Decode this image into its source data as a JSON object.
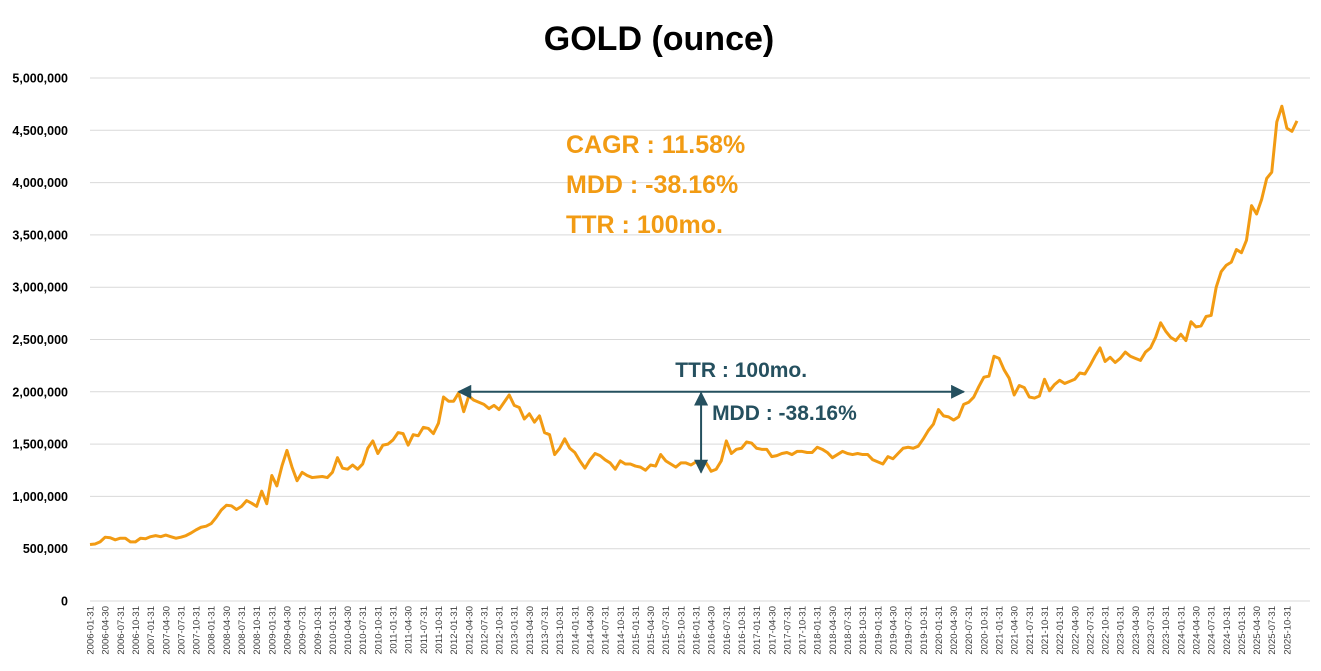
{
  "chart_data": {
    "type": "line",
    "title": "GOLD (ounce)",
    "xlabel": "",
    "ylabel": "",
    "ylim": [
      0,
      5000000
    ],
    "yticks": [
      0,
      500000,
      1000000,
      1500000,
      2000000,
      2500000,
      3000000,
      3500000,
      4000000,
      4500000,
      5000000
    ],
    "ytick_labels": [
      "0",
      "500,000",
      "1,000,000",
      "1,500,000",
      "2,000,000",
      "2,500,000",
      "3,000,000",
      "3,500,000",
      "4,000,000",
      "4,500,000",
      "5,000,000"
    ],
    "grid": true,
    "legend": "none",
    "line_color": "#f29b13",
    "x_tick_step": 3,
    "start_month": "2006-01",
    "series": [
      {
        "values": [
          540000,
          545000,
          565000,
          610000,
          605000,
          585000,
          600000,
          600000,
          565000,
          565000,
          600000,
          595000,
          615000,
          625000,
          615000,
          630000,
          615000,
          600000,
          610000,
          625000,
          650000,
          680000,
          705000,
          715000,
          740000,
          800000,
          870000,
          915000,
          910000,
          875000,
          905000,
          960000,
          935000,
          905000,
          1050000,
          930000,
          1200000,
          1100000,
          1290000,
          1440000,
          1280000,
          1150000,
          1230000,
          1200000,
          1180000,
          1185000,
          1190000,
          1180000,
          1230000,
          1370000,
          1270000,
          1260000,
          1300000,
          1260000,
          1310000,
          1460000,
          1530000,
          1410000,
          1490000,
          1500000,
          1540000,
          1610000,
          1600000,
          1490000,
          1590000,
          1580000,
          1660000,
          1650000,
          1600000,
          1700000,
          1950000,
          1910000,
          1910000,
          1990000,
          1810000,
          1960000,
          1920000,
          1900000,
          1880000,
          1840000,
          1870000,
          1830000,
          1900000,
          1970000,
          1870000,
          1850000,
          1740000,
          1790000,
          1710000,
          1770000,
          1610000,
          1590000,
          1400000,
          1460000,
          1550000,
          1460000,
          1420000,
          1340000,
          1270000,
          1350000,
          1410000,
          1390000,
          1350000,
          1320000,
          1260000,
          1340000,
          1310000,
          1310000,
          1290000,
          1280000,
          1250000,
          1300000,
          1290000,
          1400000,
          1340000,
          1310000,
          1280000,
          1320000,
          1320000,
          1300000,
          1330000,
          1320000,
          1320000,
          1240000,
          1260000,
          1340000,
          1530000,
          1410000,
          1450000,
          1460000,
          1520000,
          1510000,
          1460000,
          1450000,
          1450000,
          1380000,
          1390000,
          1410000,
          1420000,
          1400000,
          1430000,
          1430000,
          1420000,
          1420000,
          1470000,
          1450000,
          1420000,
          1370000,
          1400000,
          1430000,
          1410000,
          1400000,
          1410000,
          1400000,
          1400000,
          1350000,
          1330000,
          1310000,
          1380000,
          1360000,
          1410000,
          1460000,
          1470000,
          1460000,
          1480000,
          1550000,
          1630000,
          1690000,
          1830000,
          1770000,
          1760000,
          1730000,
          1760000,
          1880000,
          1900000,
          1950000,
          2050000,
          2140000,
          2150000,
          2340000,
          2320000,
          2210000,
          2130000,
          1970000,
          2060000,
          2040000,
          1950000,
          1940000,
          1960000,
          2120000,
          2010000,
          2070000,
          2110000,
          2080000,
          2100000,
          2120000,
          2180000,
          2170000,
          2250000,
          2340000,
          2420000,
          2290000,
          2330000,
          2280000,
          2320000,
          2380000,
          2340000,
          2320000,
          2300000,
          2380000,
          2420000,
          2520000,
          2660000,
          2580000,
          2520000,
          2490000,
          2550000,
          2490000,
          2670000,
          2620000,
          2630000,
          2720000,
          2730000,
          3000000,
          3150000,
          3210000,
          3240000,
          3360000,
          3330000,
          3450000,
          3780000,
          3700000,
          3840000,
          4040000,
          4100000,
          4580000,
          4730000,
          4520000,
          4490000,
          4590000
        ]
      }
    ],
    "annotations": {
      "cagr": "CAGR : 11.58%",
      "mdd": "MDD : -38.16%",
      "ttr": "TTR : 100mo.",
      "ttr_arrow_label": "TTR : 100mo.",
      "mdd_arrow_label": "MDD : -38.16%",
      "ttr_from_month_index": 73,
      "ttr_to_month_index": 173,
      "ttr_level": 2000000,
      "mdd_month_index": 121,
      "mdd_top": 1990000,
      "mdd_bottom": 1230000,
      "stat_color": "#f29b13",
      "anno_color": "#25505f"
    }
  }
}
